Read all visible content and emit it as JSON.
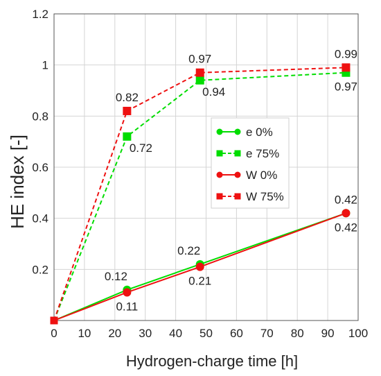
{
  "chart_data": {
    "type": "line",
    "xlabel": "Hydrogen-charge time [h]",
    "ylabel": "HE index [-]",
    "xlim": [
      0,
      100
    ],
    "ylim": [
      0,
      1.2
    ],
    "x_ticks": [
      "0",
      "10",
      "20",
      "30",
      "40",
      "50",
      "60",
      "70",
      "80",
      "90",
      "100"
    ],
    "y_ticks": [
      "0.2",
      "0.4",
      "0.6",
      "0.8",
      "1",
      "1.2"
    ],
    "grid": true,
    "legend_position": "center-right",
    "series": [
      {
        "name": "e 0%",
        "color": "#00dd00",
        "line_style": "solid",
        "marker": "circle",
        "x": [
          0,
          24,
          48,
          96
        ],
        "y": [
          0,
          0.12,
          0.22,
          0.42
        ]
      },
      {
        "name": "e 75%",
        "color": "#00dd00",
        "line_style": "dashed",
        "marker": "square",
        "x": [
          0,
          24,
          48,
          96
        ],
        "y": [
          0,
          0.72,
          0.94,
          0.97
        ]
      },
      {
        "name": "W 0%",
        "color": "#ee1111",
        "line_style": "solid",
        "marker": "circle",
        "x": [
          0,
          24,
          48,
          96
        ],
        "y": [
          0,
          0.11,
          0.21,
          0.42
        ]
      },
      {
        "name": "W 75%",
        "color": "#ee1111",
        "line_style": "dashed",
        "marker": "square",
        "x": [
          0,
          24,
          48,
          96
        ],
        "y": [
          0,
          0.82,
          0.97,
          0.99
        ]
      }
    ],
    "data_labels": [
      {
        "text": "0.82",
        "x": 24,
        "y": 0.82,
        "pos": "above"
      },
      {
        "text": "0.72",
        "x": 24,
        "y": 0.72,
        "pos": "below-right"
      },
      {
        "text": "0.97",
        "x": 48,
        "y": 0.97,
        "pos": "above"
      },
      {
        "text": "0.94",
        "x": 48,
        "y": 0.94,
        "pos": "below-right"
      },
      {
        "text": "0.99",
        "x": 96,
        "y": 0.99,
        "pos": "above"
      },
      {
        "text": "0.97",
        "x": 96,
        "y": 0.97,
        "pos": "below"
      },
      {
        "text": "0.12",
        "x": 24,
        "y": 0.12,
        "pos": "above-left"
      },
      {
        "text": "0.11",
        "x": 24,
        "y": 0.11,
        "pos": "below"
      },
      {
        "text": "0.22",
        "x": 48,
        "y": 0.22,
        "pos": "above-left"
      },
      {
        "text": "0.21",
        "x": 48,
        "y": 0.21,
        "pos": "below"
      },
      {
        "text": "0.42",
        "x": 96,
        "y": 0.42,
        "pos": "above"
      },
      {
        "text": "0.42",
        "x": 96,
        "y": 0.42,
        "pos": "below"
      }
    ]
  }
}
